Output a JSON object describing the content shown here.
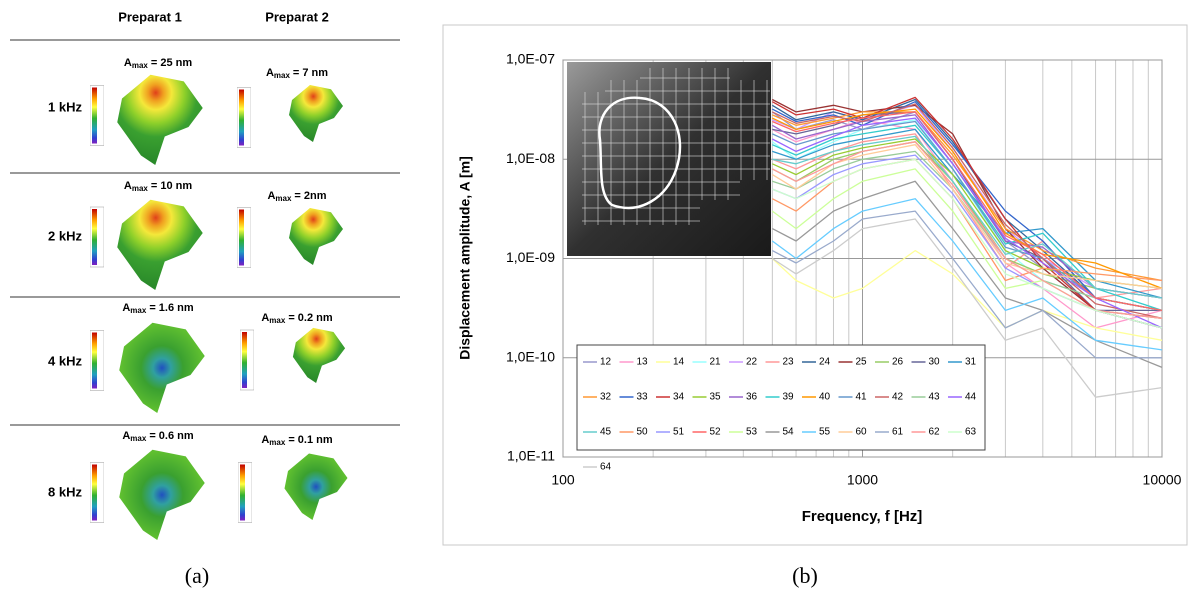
{
  "panel_a": {
    "headers": [
      "Preparat 1",
      "Preparat 2"
    ],
    "amax_symbol": "A",
    "amax_sub": "max",
    "rows": [
      {
        "label": "1 kHz",
        "amax": [
          "= 25 nm",
          "= 7 nm"
        ]
      },
      {
        "label": "2 kHz",
        "amax": [
          "= 10 nm",
          "= 2nm"
        ]
      },
      {
        "label": "4 kHz",
        "amax": [
          "= 1.6 nm",
          "= 0.2 nm"
        ]
      },
      {
        "label": "8 kHz",
        "amax": [
          "= 0.6 nm",
          "= 0.1 nm"
        ]
      }
    ]
  },
  "captions": [
    "(a)",
    "(b)"
  ],
  "chart_data": {
    "type": "line",
    "xlabel": "Frequency, f [Hz]",
    "ylabel": "Displacement amplitude, A [m]",
    "xscale": "log",
    "yscale": "log",
    "xlim": [
      100,
      10000
    ],
    "xticks": [
      100,
      1000,
      10000
    ],
    "xminorticks": [
      200,
      300,
      400,
      500,
      600,
      700,
      800,
      900,
      2000,
      3000,
      4000,
      5000,
      6000,
      7000,
      8000,
      9000
    ],
    "ylim": [
      1e-11,
      1e-07
    ],
    "yticks": [
      {
        "value": 1e-11,
        "label": "1,0E-11"
      },
      {
        "value": 1e-10,
        "label": "1,0E-10"
      },
      {
        "value": 1e-09,
        "label": "1,0E-09"
      },
      {
        "value": 1e-08,
        "label": "1,0E-08"
      },
      {
        "value": 1e-07,
        "label": "1,0E-07"
      }
    ],
    "grid": true,
    "legend": "bottom-left",
    "x": [
      500,
      600,
      800,
      1000,
      1500,
      2000,
      3000,
      4000,
      6000,
      10000
    ],
    "series": [
      {
        "name": "12",
        "color": "#9999cc",
        "values": [
          3e-08,
          2e-08,
          2.5e-08,
          2e-08,
          3e-08,
          1e-08,
          1.5e-09,
          8e-10,
          3e-10,
          2e-10
        ]
      },
      {
        "name": "13",
        "color": "#ff99cc",
        "values": [
          2e-08,
          1.5e-08,
          2e-08,
          2.5e-08,
          2e-08,
          6e-09,
          9e-10,
          5e-10,
          2e-10,
          3e-10
        ]
      },
      {
        "name": "14",
        "color": "#ffff99",
        "values": [
          1e-09,
          6e-10,
          4e-10,
          5e-10,
          1.2e-09,
          7e-10,
          2e-10,
          3e-10,
          2e-10,
          1.5e-10
        ]
      },
      {
        "name": "21",
        "color": "#99ffff",
        "values": [
          1.5e-08,
          1e-08,
          1.5e-08,
          2e-08,
          2.5e-08,
          8e-09,
          1.2e-09,
          6e-10,
          4e-10,
          3e-10
        ]
      },
      {
        "name": "22",
        "color": "#cc99ff",
        "values": [
          2.5e-08,
          2e-08,
          3e-08,
          2.5e-08,
          3.5e-08,
          1.2e-08,
          2e-09,
          1e-09,
          5e-10,
          4e-10
        ]
      },
      {
        "name": "23",
        "color": "#ff9999",
        "values": [
          1e-08,
          8e-09,
          1.2e-08,
          1.5e-08,
          1.8e-08,
          5e-09,
          8e-10,
          1.5e-09,
          4e-10,
          5e-10
        ]
      },
      {
        "name": "24",
        "color": "#336699",
        "values": [
          3.5e-08,
          2.5e-08,
          3e-08,
          2.5e-08,
          4e-08,
          1.5e-08,
          2.5e-09,
          1.2e-09,
          4e-10,
          3e-10
        ]
      },
      {
        "name": "25",
        "color": "#993333",
        "values": [
          4e-08,
          3e-08,
          3.5e-08,
          3e-08,
          3.5e-08,
          1.8e-08,
          2e-09,
          8e-10,
          3e-10,
          2.5e-10
        ]
      },
      {
        "name": "26",
        "color": "#99cc66",
        "values": [
          8e-09,
          6e-09,
          1e-08,
          1.2e-08,
          1.5e-08,
          6e-09,
          1e-09,
          7e-10,
          5e-10,
          4e-10
        ]
      },
      {
        "name": "30",
        "color": "#666699",
        "values": [
          2e-08,
          1.8e-08,
          2.2e-08,
          2.8e-08,
          3e-08,
          1e-08,
          1.5e-09,
          1e-09,
          3e-10,
          3e-10
        ]
      },
      {
        "name": "31",
        "color": "#3399cc",
        "values": [
          1.2e-08,
          1e-08,
          1.4e-08,
          1.6e-08,
          2e-08,
          7e-09,
          1.8e-09,
          2e-09,
          6e-10,
          4e-10
        ]
      },
      {
        "name": "32",
        "color": "#ff9933",
        "values": [
          2.8e-08,
          2.2e-08,
          2.6e-08,
          3e-08,
          3e-08,
          1.1e-08,
          2e-09,
          1.2e-09,
          8e-10,
          6e-10
        ]
      },
      {
        "name": "33",
        "color": "#3366cc",
        "values": [
          3.2e-08,
          2.4e-08,
          2.8e-08,
          2.2e-08,
          3.8e-08,
          1.4e-08,
          3e-09,
          1.5e-09,
          4e-10,
          3e-10
        ]
      },
      {
        "name": "34",
        "color": "#cc3333",
        "values": [
          3.8e-08,
          2.8e-08,
          3.2e-08,
          2.6e-08,
          4.2e-08,
          1.6e-08,
          2.5e-09,
          9e-10,
          3e-10,
          2e-10
        ]
      },
      {
        "name": "35",
        "color": "#99cc33",
        "values": [
          9e-09,
          7e-09,
          1.1e-08,
          1.3e-08,
          1.6e-08,
          7e-09,
          1.2e-09,
          8e-10,
          6e-10,
          5e-10
        ]
      },
      {
        "name": "36",
        "color": "#9966cc",
        "values": [
          2.2e-08,
          1.6e-08,
          2e-08,
          2.4e-08,
          2.8e-08,
          9e-09,
          1.5e-09,
          1.3e-09,
          5e-10,
          4e-10
        ]
      },
      {
        "name": "39",
        "color": "#33cccc",
        "values": [
          1.4e-08,
          1.1e-08,
          1.6e-08,
          1.8e-08,
          2.2e-08,
          8e-09,
          1.4e-09,
          1.8e-09,
          5e-10,
          3e-10
        ]
      },
      {
        "name": "40",
        "color": "#ff9900",
        "values": [
          2.6e-08,
          2e-08,
          2.4e-08,
          2.8e-08,
          3.2e-08,
          1.2e-08,
          1.8e-09,
          1.1e-09,
          9e-10,
          5e-10
        ]
      },
      {
        "name": "41",
        "color": "#6699cc",
        "values": [
          1.8e-08,
          1.4e-08,
          1.8e-08,
          2e-08,
          2.4e-08,
          8e-09,
          1.3e-09,
          1e-09,
          4e-10,
          3e-10
        ]
      },
      {
        "name": "42",
        "color": "#cc6666",
        "values": [
          3e-08,
          2.3e-08,
          2.7e-08,
          2.4e-08,
          3.6e-08,
          1.3e-08,
          2.2e-09,
          1e-09,
          3.5e-10,
          2.5e-10
        ]
      },
      {
        "name": "43",
        "color": "#99cc99",
        "values": [
          6e-09,
          5e-09,
          8e-09,
          1e-08,
          1.2e-08,
          5e-09,
          1e-09,
          6e-10,
          4e-10,
          3e-10
        ]
      },
      {
        "name": "44",
        "color": "#9966ff",
        "values": [
          1.6e-08,
          1.2e-08,
          1.7e-08,
          2.2e-08,
          2.6e-08,
          9e-09,
          1.6e-09,
          9e-10,
          4e-10,
          2e-10
        ]
      },
      {
        "name": "45",
        "color": "#66cccc",
        "values": [
          1e-08,
          9e-09,
          1.2e-08,
          1.4e-08,
          1.7e-08,
          6e-09,
          1.1e-09,
          1.4e-09,
          5e-10,
          4e-10
        ]
      },
      {
        "name": "50",
        "color": "#ff9966",
        "values": [
          4e-09,
          3e-09,
          6e-09,
          8e-09,
          1e-08,
          4e-09,
          6e-10,
          8e-10,
          7e-10,
          6e-10
        ]
      },
      {
        "name": "51",
        "color": "#9999ff",
        "values": [
          5e-09,
          4e-09,
          7e-09,
          9e-09,
          1.1e-08,
          4.5e-09,
          8e-10,
          5e-10,
          3e-10,
          2e-10
        ]
      },
      {
        "name": "52",
        "color": "#ff6666",
        "values": [
          2.4e-08,
          1.9e-08,
          2.3e-08,
          2.6e-08,
          3e-08,
          1e-08,
          1.7e-09,
          1.1e-09,
          4e-10,
          3e-10
        ]
      },
      {
        "name": "53",
        "color": "#ccff99",
        "values": [
          3e-09,
          2e-09,
          4e-09,
          6e-09,
          8e-09,
          3e-09,
          5e-10,
          6e-10,
          3e-10,
          2.5e-10
        ]
      },
      {
        "name": "54",
        "color": "#999999",
        "values": [
          2e-09,
          1.5e-09,
          3e-09,
          4e-09,
          6e-09,
          2e-09,
          4e-10,
          3e-10,
          1.5e-10,
          8e-11
        ]
      },
      {
        "name": "55",
        "color": "#66ccff",
        "values": [
          1.5e-09,
          1e-09,
          2e-09,
          3e-09,
          4e-09,
          1.5e-09,
          3e-10,
          4e-10,
          1.5e-10,
          1.2e-10
        ]
      },
      {
        "name": "60",
        "color": "#ffcc99",
        "values": [
          7e-09,
          5e-09,
          9e-09,
          1.1e-08,
          1.4e-08,
          5e-09,
          9e-10,
          7e-10,
          6e-10,
          5e-10
        ]
      },
      {
        "name": "61",
        "color": "#99aacc",
        "values": [
          1.2e-09,
          9e-10,
          1.5e-09,
          2.5e-09,
          3e-09,
          1e-09,
          2e-10,
          3e-10,
          1e-10,
          1e-10
        ]
      },
      {
        "name": "62",
        "color": "#ff9999",
        "values": [
          8e-09,
          6e-09,
          9e-09,
          1.2e-08,
          1.5e-08,
          5.5e-09,
          1e-09,
          6e-10,
          3e-10,
          2.5e-10
        ]
      },
      {
        "name": "63",
        "color": "#ccffcc",
        "values": [
          5e-09,
          4e-09,
          6e-09,
          8e-09,
          1e-08,
          4e-09,
          7e-10,
          5e-10,
          3e-10,
          2e-10
        ]
      },
      {
        "name": "64",
        "color": "#cccccc",
        "values": [
          1e-09,
          7e-10,
          1.2e-09,
          2e-09,
          2.5e-09,
          8e-10,
          1.5e-10,
          2e-10,
          4e-11,
          5e-11
        ]
      }
    ]
  }
}
